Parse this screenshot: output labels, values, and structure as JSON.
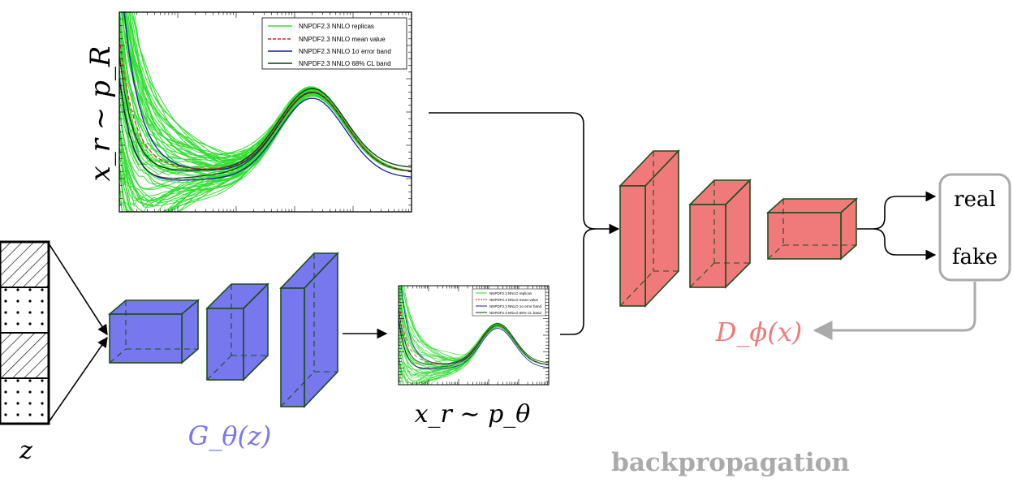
{
  "labels": {
    "real_sample": "x_r ∼ p_R",
    "generated_sample": "x_r ∼ p_θ",
    "generator": "G_θ(z)",
    "discriminator": "D_ϕ(x)",
    "noise": "z",
    "output_real": "real",
    "output_fake": "fake",
    "backprop": "backpropagation"
  },
  "legend": [
    "NNPDF2.3 NNLO replicas",
    "NNPDF2.3 NNLO mean value",
    "NNPDF2.3 NNLO 1σ error band",
    "NNPDF2.3 NNLO 68% CL band"
  ],
  "colors": {
    "generator": "#7777ee",
    "discriminator": "#f07a7a",
    "box_edge": "#1e4d1e",
    "replicas": "#33dd33",
    "mean": "#dd2222",
    "error_band": "#1a1aaa",
    "cl_band": "#0b3a0b",
    "backprop": "#aaaaaa"
  }
}
